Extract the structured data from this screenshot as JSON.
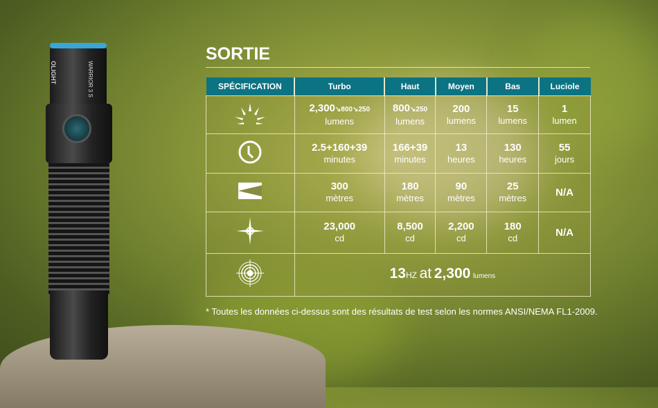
{
  "title": "SORTIE",
  "flashlight": {
    "brand": "OLIGHT",
    "model": "WARRIOR 3 S"
  },
  "headers": [
    "SPÉCIFICATION",
    "Turbo",
    "Haut",
    "Moyen",
    "Bas",
    "Luciole"
  ],
  "rows": [
    {
      "icon": "sun-brightness-icon",
      "cells": [
        {
          "v": "2,300",
          "s": "↘800↘250",
          "u": "lumens"
        },
        {
          "v": "800",
          "s": "↘250",
          "u": "lumens"
        },
        {
          "v": "200",
          "u": "lumens"
        },
        {
          "v": "15",
          "u": "lumens"
        },
        {
          "v": "1",
          "u": "lumen"
        }
      ]
    },
    {
      "icon": "clock-icon",
      "cells": [
        {
          "v": "2.5+160+39",
          "u": "minutes"
        },
        {
          "v": "166+39",
          "u": "minutes"
        },
        {
          "v": "13",
          "u": "heures"
        },
        {
          "v": "130",
          "u": "heures"
        },
        {
          "v": "55",
          "u": "jours"
        }
      ]
    },
    {
      "icon": "beam-distance-icon",
      "cells": [
        {
          "v": "300",
          "u": "mètres"
        },
        {
          "v": "180",
          "u": "mètres"
        },
        {
          "v": "90",
          "u": "mètres"
        },
        {
          "v": "25",
          "u": "mètres"
        },
        {
          "v": "N/A"
        }
      ]
    },
    {
      "icon": "intensity-star-icon",
      "cells": [
        {
          "v": "23,000",
          "u": "cd"
        },
        {
          "v": "8,500",
          "u": "cd"
        },
        {
          "v": "2,200",
          "u": "cd"
        },
        {
          "v": "180",
          "u": "cd"
        },
        {
          "v": "N/A"
        }
      ]
    }
  ],
  "strobe": {
    "icon": "strobe-target-icon",
    "num": "13",
    "unit": "HZ",
    "at": "at",
    "lum": "2,300",
    "lumunit": "lumens"
  },
  "note": "*  Toutes les données ci-dessus sont des résultats de test selon les normes ANSI/NEMA FL1-2009.",
  "colors": {
    "header": "#0c7383"
  }
}
